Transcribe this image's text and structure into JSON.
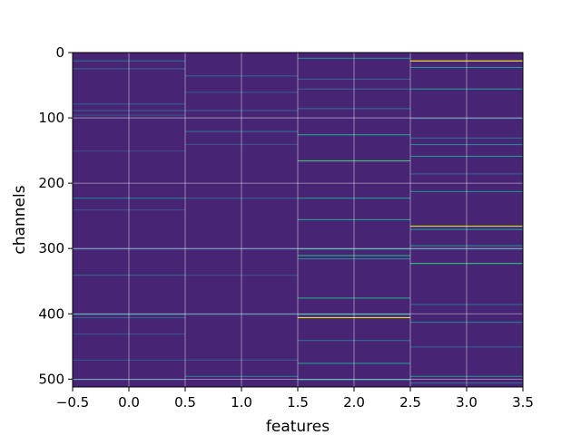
{
  "chart_data": {
    "type": "heatmap",
    "title": "",
    "xlabel": "features",
    "ylabel": "channels",
    "xlim": [
      -0.5,
      3.5
    ],
    "ylim": [
      512,
      0
    ],
    "x_ticks": [
      -0.5,
      0.0,
      0.5,
      1.0,
      1.5,
      2.0,
      2.5,
      3.0,
      3.5
    ],
    "x_tick_labels": [
      "−0.5",
      "0.0",
      "0.5",
      "1.0",
      "1.5",
      "2.0",
      "2.5",
      "3.0",
      "3.5"
    ],
    "y_ticks": [
      0,
      100,
      200,
      300,
      400,
      500
    ],
    "y_tick_labels": [
      "0",
      "100",
      "200",
      "300",
      "400",
      "500"
    ],
    "grid": true,
    "colormap": "viridis",
    "value_range": [
      0,
      1
    ],
    "base_value": 0.1,
    "columns": [
      {
        "feature": 0,
        "highlights": [
          [
            12,
            0.35
          ],
          [
            24,
            0.3
          ],
          [
            78,
            0.28
          ],
          [
            88,
            0.3
          ],
          [
            95,
            0.25
          ],
          [
            150,
            0.22
          ],
          [
            222,
            0.4
          ],
          [
            240,
            0.25
          ],
          [
            300,
            0.3
          ],
          [
            340,
            0.32
          ],
          [
            400,
            0.45
          ],
          [
            405,
            0.3
          ],
          [
            430,
            0.25
          ],
          [
            470,
            0.25
          ],
          [
            500,
            0.3
          ]
        ]
      },
      {
        "feature": 1,
        "highlights": [
          [
            35,
            0.3
          ],
          [
            60,
            0.28
          ],
          [
            88,
            0.3
          ],
          [
            120,
            0.35
          ],
          [
            140,
            0.25
          ],
          [
            222,
            0.3
          ],
          [
            300,
            0.28
          ],
          [
            340,
            0.25
          ],
          [
            400,
            0.3
          ],
          [
            470,
            0.28
          ],
          [
            495,
            0.4
          ]
        ]
      },
      {
        "feature": 2,
        "highlights": [
          [
            8,
            0.45
          ],
          [
            40,
            0.3
          ],
          [
            55,
            0.3
          ],
          [
            85,
            0.35
          ],
          [
            125,
            0.55
          ],
          [
            165,
            0.7
          ],
          [
            222,
            0.5
          ],
          [
            255,
            0.55
          ],
          [
            300,
            0.5
          ],
          [
            310,
            0.6
          ],
          [
            315,
            0.45
          ],
          [
            375,
            0.55
          ],
          [
            400,
            0.55
          ],
          [
            405,
            0.95
          ],
          [
            440,
            0.35
          ],
          [
            475,
            0.5
          ],
          [
            500,
            0.5
          ]
        ]
      },
      {
        "feature": 3,
        "highlights": [
          [
            12,
            0.98
          ],
          [
            22,
            0.5
          ],
          [
            55,
            0.5
          ],
          [
            100,
            0.3
          ],
          [
            130,
            0.35
          ],
          [
            140,
            0.45
          ],
          [
            158,
            0.5
          ],
          [
            185,
            0.3
          ],
          [
            212,
            0.45
          ],
          [
            265,
            0.92
          ],
          [
            270,
            0.5
          ],
          [
            295,
            0.45
          ],
          [
            300,
            0.35
          ],
          [
            322,
            0.65
          ],
          [
            385,
            0.35
          ],
          [
            412,
            0.4
          ],
          [
            450,
            0.3
          ],
          [
            495,
            0.45
          ],
          [
            505,
            0.35
          ]
        ]
      }
    ]
  }
}
